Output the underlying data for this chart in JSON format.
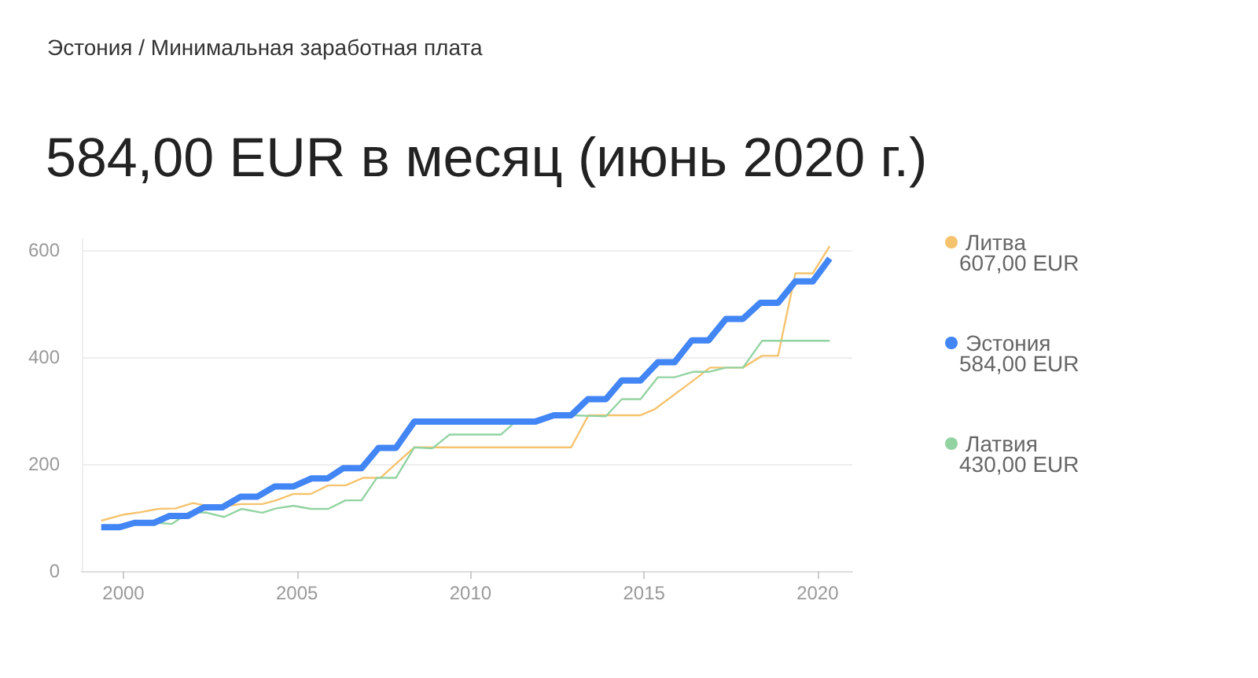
{
  "chart_data": {
    "type": "line",
    "subtitle": "Эстония / Минимальная заработная плата",
    "title": "584,00 EUR в месяц (июнь 2020 г.)",
    "series": [
      {
        "name": "Литва",
        "color": "#f5c36e",
        "x": [
          1999.36,
          1999.97,
          2000.5,
          2001,
          2001.5,
          2002,
          2002.4,
          2002.9,
          2003.4,
          2004,
          2004.4,
          2004.9,
          2005.4,
          2005.9,
          2006.4,
          2006.9,
          2007.4,
          2008.38,
          2012.9,
          2013.4,
          2014.9,
          2015.3,
          2016.4,
          2016.9,
          2017.85,
          2018.4,
          2018.86,
          2019.36,
          2019.86,
          2020.35
        ],
        "values": [
          94,
          105,
          110,
          116,
          117,
          127,
          122,
          121,
          125,
          125,
          132,
          144,
          144,
          160,
          160,
          174,
          174,
          231,
          231,
          291,
          291,
          302,
          355,
          380,
          380,
          402,
          402,
          556,
          556,
          607
        ]
      },
      {
        "name": "Эстония",
        "color": "#4285f4",
        "x": [
          1999.36,
          1999.9,
          2000.32,
          2000.88,
          2001.33,
          2001.86,
          2002.32,
          2002.85,
          2003.38,
          2003.86,
          2004.36,
          2004.9,
          2005.42,
          2005.88,
          2006.33,
          2006.86,
          2007.35,
          2007.85,
          2008.38,
          2011.86,
          2012.4,
          2012.9,
          2013.38,
          2013.9,
          2014.36,
          2014.9,
          2015.4,
          2015.88,
          2016.38,
          2016.86,
          2017.36,
          2017.85,
          2018.35,
          2018.86,
          2019.36,
          2019.86,
          2020.35
        ],
        "values": [
          82,
          82,
          90,
          90,
          103,
          103,
          119,
          119,
          139,
          139,
          158,
          158,
          173,
          173,
          192,
          192,
          230,
          230,
          279,
          279,
          291,
          291,
          321,
          321,
          356,
          356,
          390,
          390,
          431,
          431,
          471,
          471,
          501,
          501,
          541,
          541,
          584
        ]
      },
      {
        "name": "Латвия",
        "color": "#93d3a2",
        "x": [
          2001,
          2001.4,
          2001.9,
          2002.4,
          2002.9,
          2003.4,
          2004,
          2004.4,
          2004.9,
          2005.4,
          2005.9,
          2006.4,
          2006.86,
          2007.3,
          2007.85,
          2008.38,
          2008.9,
          2009.4,
          2010.88,
          2011.3,
          2012.9,
          2013.9,
          2014.36,
          2014.9,
          2015.4,
          2015.88,
          2016.4,
          2016.86,
          2017.36,
          2017.85,
          2018.4,
          2020.35
        ],
        "values": [
          90,
          88,
          110,
          109,
          101,
          116,
          109,
          117,
          122,
          116,
          116,
          132,
          132,
          174,
          174,
          231,
          229,
          255,
          255,
          279,
          291,
          289,
          321,
          321,
          362,
          362,
          372,
          372,
          380,
          380,
          430,
          430
        ]
      }
    ],
    "annotations": [
      "607,00 EUR",
      "584,00 EUR",
      "430,00 EUR"
    ],
    "xlim": [
      1998.8,
      2021
    ],
    "xticks": [
      2000,
      2005,
      2010,
      2015,
      2020
    ],
    "ylim": [
      0,
      620
    ],
    "yticks": [
      0,
      200,
      400,
      600
    ],
    "grid": "y",
    "legend": "right",
    "marker": "none",
    "line_style": "solid"
  }
}
